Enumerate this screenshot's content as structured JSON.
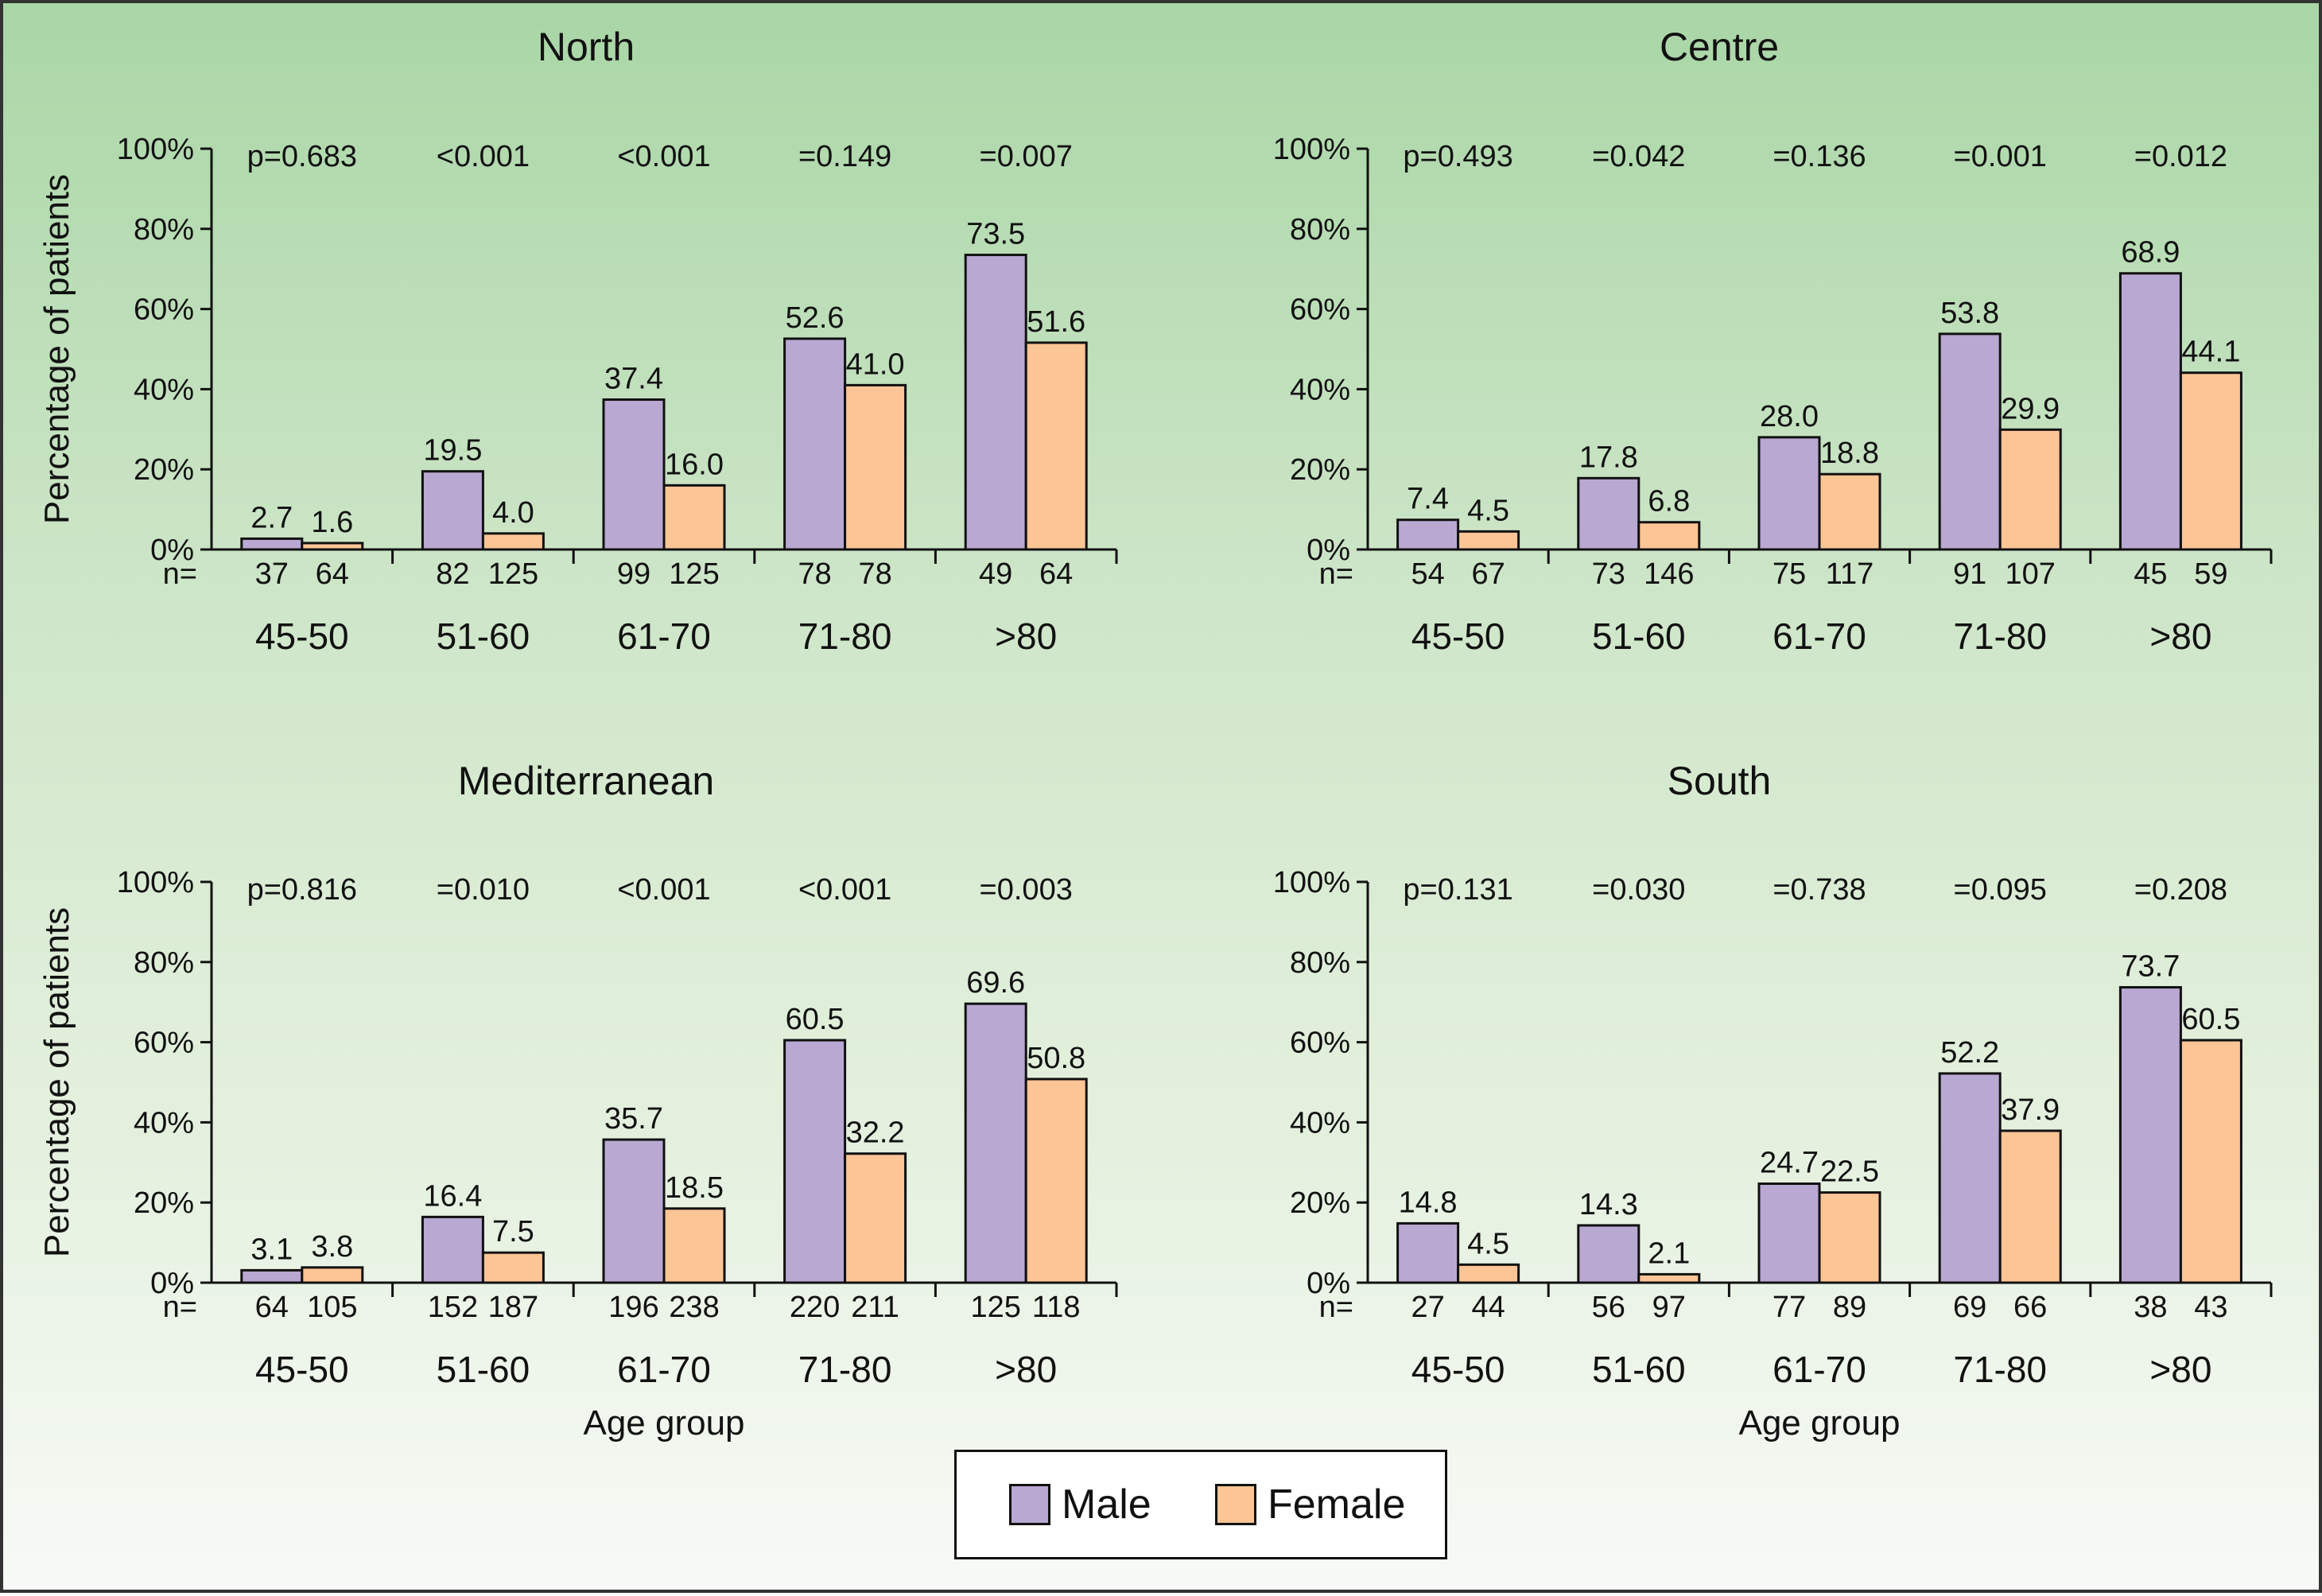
{
  "colors": {
    "male": "#b8a8d2",
    "female": "#fcc596",
    "axis": "#111111",
    "text": "#111111"
  },
  "legend": {
    "male_label": "Male",
    "female_label": "Female"
  },
  "chart_data": [
    {
      "type": "bar",
      "title": "North",
      "ylabel": "Percentage of patients",
      "xlabel": "",
      "ylim": [
        0,
        100
      ],
      "yticks": [
        "0%",
        "20%",
        "40%",
        "60%",
        "80%",
        "100%"
      ],
      "n_label": "n=",
      "categories": [
        "45-50",
        "51-60",
        "61-70",
        "71-80",
        ">80"
      ],
      "p_values": [
        "p=0.683",
        "<0.001",
        "<0.001",
        "=0.149",
        "=0.007"
      ],
      "series": [
        {
          "name": "Male",
          "values": [
            2.7,
            19.5,
            37.4,
            52.6,
            73.5
          ],
          "labels": [
            "2.7",
            "19.5",
            "37.4",
            "52.6",
            "73.5"
          ],
          "n": [
            "37",
            "82",
            "99",
            "78",
            "49"
          ]
        },
        {
          "name": "Female",
          "values": [
            1.6,
            4.0,
            16.0,
            41.0,
            51.6
          ],
          "labels": [
            "1.6",
            "4.0",
            "16.0",
            "41.0",
            "51.6"
          ],
          "n": [
            "64",
            "125",
            "125",
            "78",
            "64"
          ]
        }
      ]
    },
    {
      "type": "bar",
      "title": "Centre",
      "ylabel": "",
      "xlabel": "",
      "ylim": [
        0,
        100
      ],
      "yticks": [
        "0%",
        "20%",
        "40%",
        "60%",
        "80%",
        "100%"
      ],
      "n_label": "n=",
      "categories": [
        "45-50",
        "51-60",
        "61-70",
        "71-80",
        ">80"
      ],
      "p_values": [
        "p=0.493",
        "=0.042",
        "=0.136",
        "=0.001",
        "=0.012"
      ],
      "series": [
        {
          "name": "Male",
          "values": [
            7.4,
            17.8,
            28.0,
            53.8,
            68.9
          ],
          "labels": [
            "7.4",
            "17.8",
            "28.0",
            "53.8",
            "68.9"
          ],
          "n": [
            "54",
            "73",
            "75",
            "91",
            "45"
          ]
        },
        {
          "name": "Female",
          "values": [
            4.5,
            6.8,
            18.8,
            29.9,
            44.1
          ],
          "labels": [
            "4.5",
            "6.8",
            "18.8",
            "29.9",
            "44.1"
          ],
          "n": [
            "67",
            "146",
            "117",
            "107",
            "59"
          ]
        }
      ]
    },
    {
      "type": "bar",
      "title": "Mediterranean",
      "ylabel": "Percentage of patients",
      "xlabel": "Age group",
      "ylim": [
        0,
        100
      ],
      "yticks": [
        "0%",
        "20%",
        "40%",
        "60%",
        "80%",
        "100%"
      ],
      "n_label": "n=",
      "categories": [
        "45-50",
        "51-60",
        "61-70",
        "71-80",
        ">80"
      ],
      "p_values": [
        "p=0.816",
        "=0.010",
        "<0.001",
        "<0.001",
        "=0.003"
      ],
      "series": [
        {
          "name": "Male",
          "values": [
            3.1,
            16.4,
            35.7,
            60.5,
            69.6
          ],
          "labels": [
            "3.1",
            "16.4",
            "35.7",
            "60.5",
            "69.6"
          ],
          "n": [
            "64",
            "152",
            "196",
            "220",
            "125"
          ]
        },
        {
          "name": "Female",
          "values": [
            3.8,
            7.5,
            18.5,
            32.2,
            50.8
          ],
          "labels": [
            "3.8",
            "7.5",
            "18.5",
            "32.2",
            "50.8"
          ],
          "n": [
            "105",
            "187",
            "238",
            "211",
            "118"
          ]
        }
      ]
    },
    {
      "type": "bar",
      "title": "South",
      "ylabel": "",
      "xlabel": "Age group",
      "ylim": [
        0,
        100
      ],
      "yticks": [
        "0%",
        "20%",
        "40%",
        "60%",
        "80%",
        "100%"
      ],
      "n_label": "n=",
      "categories": [
        "45-50",
        "51-60",
        "61-70",
        "71-80",
        ">80"
      ],
      "p_values": [
        "p=0.131",
        "=0.030",
        "=0.738",
        "=0.095",
        "=0.208"
      ],
      "series": [
        {
          "name": "Male",
          "values": [
            14.8,
            14.3,
            24.7,
            52.2,
            73.7
          ],
          "labels": [
            "14.8",
            "14.3",
            "24.7",
            "52.2",
            "73.7"
          ],
          "n": [
            "27",
            "56",
            "77",
            "69",
            "38"
          ]
        },
        {
          "name": "Female",
          "values": [
            4.5,
            2.1,
            22.5,
            37.9,
            60.5
          ],
          "labels": [
            "4.5",
            "2.1",
            "22.5",
            "37.9",
            "60.5"
          ],
          "n": [
            "44",
            "97",
            "89",
            "66",
            "43"
          ]
        }
      ]
    }
  ]
}
